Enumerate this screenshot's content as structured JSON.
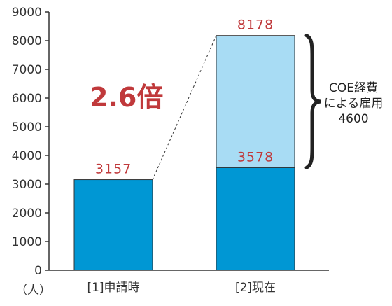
{
  "chart_data": {
    "type": "bar",
    "stacked": true,
    "categories": [
      "[1]申請時",
      "[2]現在"
    ],
    "series": [
      {
        "values": [
          3157,
          3578
        ]
      },
      {
        "values": [
          0,
          4600
        ]
      }
    ],
    "totals": [
      3157,
      8178
    ],
    "data_labels": [
      "3157",
      "3578",
      "8178"
    ],
    "ylim": [
      0,
      9000
    ],
    "yticks": [
      0,
      1000,
      2000,
      3000,
      4000,
      5000,
      6000,
      7000,
      8000,
      9000
    ],
    "ylabel": "（人）",
    "annotations": {
      "ratio": "2.6倍",
      "brace_lines": [
        "COE経費",
        "による雇用",
        "4600"
      ]
    },
    "grid": false,
    "legend": "none",
    "colors": {
      "base": "#0097d4",
      "coe": "#a8dcf4",
      "label_red": "#c0393b"
    }
  }
}
